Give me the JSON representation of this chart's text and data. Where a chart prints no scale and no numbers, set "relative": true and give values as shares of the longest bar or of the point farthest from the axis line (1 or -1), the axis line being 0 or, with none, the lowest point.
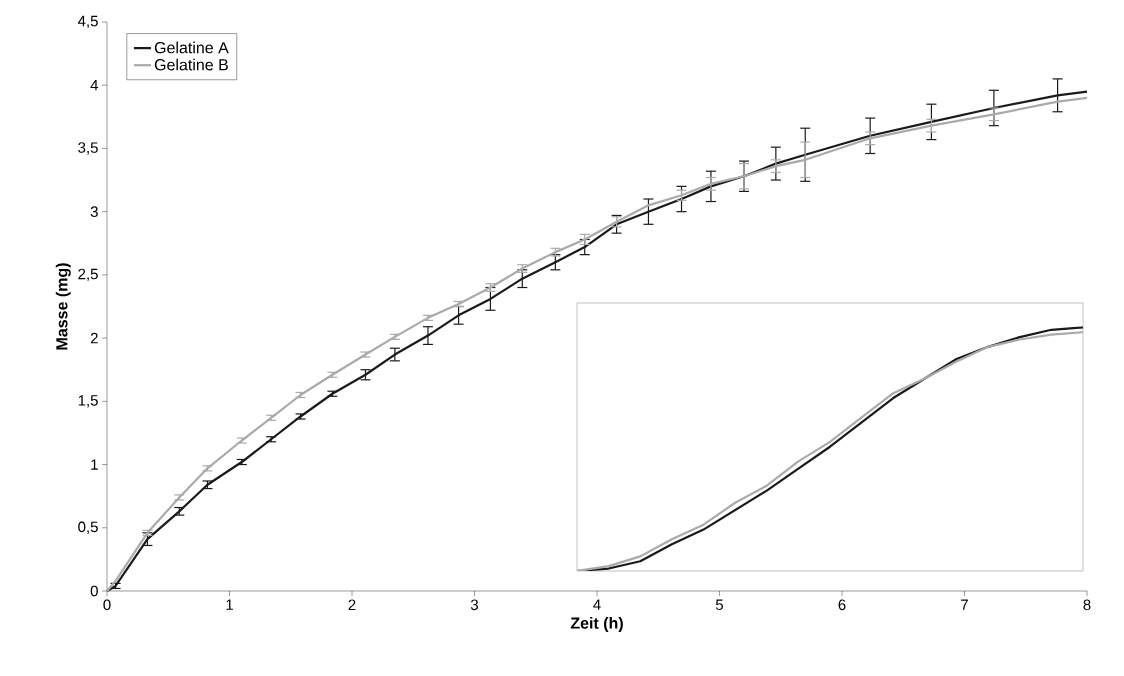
{
  "chart_data": [
    {
      "type": "line",
      "xlabel": "Zeit (h)",
      "ylabel": "Masse (mg)",
      "x": [
        0,
        0.07,
        0.33,
        0.59,
        0.82,
        1.1,
        1.34,
        1.58,
        1.84,
        2.11,
        2.35,
        2.62,
        2.87,
        3.13,
        3.39,
        3.66,
        3.9,
        4.16,
        4.42,
        4.69,
        4.93,
        5.2,
        5.46,
        5.7,
        6.23,
        6.73,
        7.24,
        7.76,
        8
      ],
      "series": [
        {
          "name": "Gelatine A",
          "color": "#1a1a1a",
          "values": [
            0,
            0.04,
            0.41,
            0.63,
            0.84,
            1.02,
            1.2,
            1.38,
            1.56,
            1.71,
            1.87,
            2.02,
            2.18,
            2.31,
            2.47,
            2.6,
            2.72,
            2.9,
            3.0,
            3.1,
            3.2,
            3.28,
            3.38,
            3.45,
            3.6,
            3.71,
            3.82,
            3.92,
            3.95
          ],
          "errors": [
            null,
            0.02,
            0.05,
            0.03,
            0.03,
            0.02,
            0.02,
            0.02,
            0.02,
            0.04,
            0.05,
            0.07,
            0.07,
            0.09,
            0.07,
            0.06,
            0.06,
            0.07,
            0.1,
            0.1,
            0.12,
            0.12,
            0.13,
            0.21,
            0.14,
            0.14,
            0.14,
            0.13,
            null
          ]
        },
        {
          "name": "Gelatine B",
          "color": "#aaaaaa",
          "values": [
            0,
            0.08,
            0.46,
            0.74,
            0.97,
            1.19,
            1.37,
            1.55,
            1.71,
            1.87,
            2.01,
            2.16,
            2.27,
            2.4,
            2.55,
            2.68,
            2.78,
            2.92,
            3.05,
            3.13,
            3.22,
            3.28,
            3.36,
            3.41,
            3.58,
            3.68,
            3.77,
            3.87,
            3.9
          ],
          "errors": [
            null,
            null,
            0.02,
            0.02,
            0.02,
            0.02,
            0.02,
            0.02,
            0.02,
            0.02,
            0.02,
            0.02,
            0.02,
            0.03,
            0.03,
            0.03,
            0.04,
            0.04,
            null,
            0.04,
            0.05,
            0.1,
            0.05,
            0.14,
            0.05,
            0.05,
            0.05,
            null,
            null
          ]
        }
      ],
      "xlim": [
        0,
        8
      ],
      "ylim": [
        0,
        4.5
      ],
      "xticks": [
        0,
        1,
        2,
        3,
        4,
        5,
        6,
        7,
        8
      ],
      "yticks": [
        0,
        {
          "value": 0.5,
          "label": "0,5"
        },
        1,
        {
          "value": 1.5,
          "label": "1,5"
        },
        2,
        {
          "value": 2.5,
          "label": "2,5"
        },
        3,
        {
          "value": 3.5,
          "label": "3,5"
        },
        4,
        {
          "value": 4.5,
          "label": "4,5"
        }
      ],
      "legend": "top left"
    },
    {
      "type": "line",
      "relative": true,
      "categories": [
        null,
        null,
        null,
        null,
        null,
        null,
        null,
        null,
        null,
        null,
        null,
        null,
        null,
        null,
        null,
        null,
        null
      ],
      "series": [
        {
          "color": "#1a1a1a",
          "values": [
            0,
            0.01,
            0.04,
            0.11,
            0.17,
            0.25,
            0.33,
            0.42,
            0.51,
            0.61,
            0.71,
            0.79,
            0.87,
            0.92,
            0.96,
            0.99,
            1
          ]
        },
        {
          "color": "#aaaaaa",
          "values": [
            0,
            0.02,
            0.06,
            0.13,
            0.19,
            0.28,
            0.35,
            0.45,
            0.53,
            0.63,
            0.73,
            0.79,
            0.86,
            0.92,
            0.95,
            0.97,
            0.98
          ]
        }
      ]
    }
  ]
}
